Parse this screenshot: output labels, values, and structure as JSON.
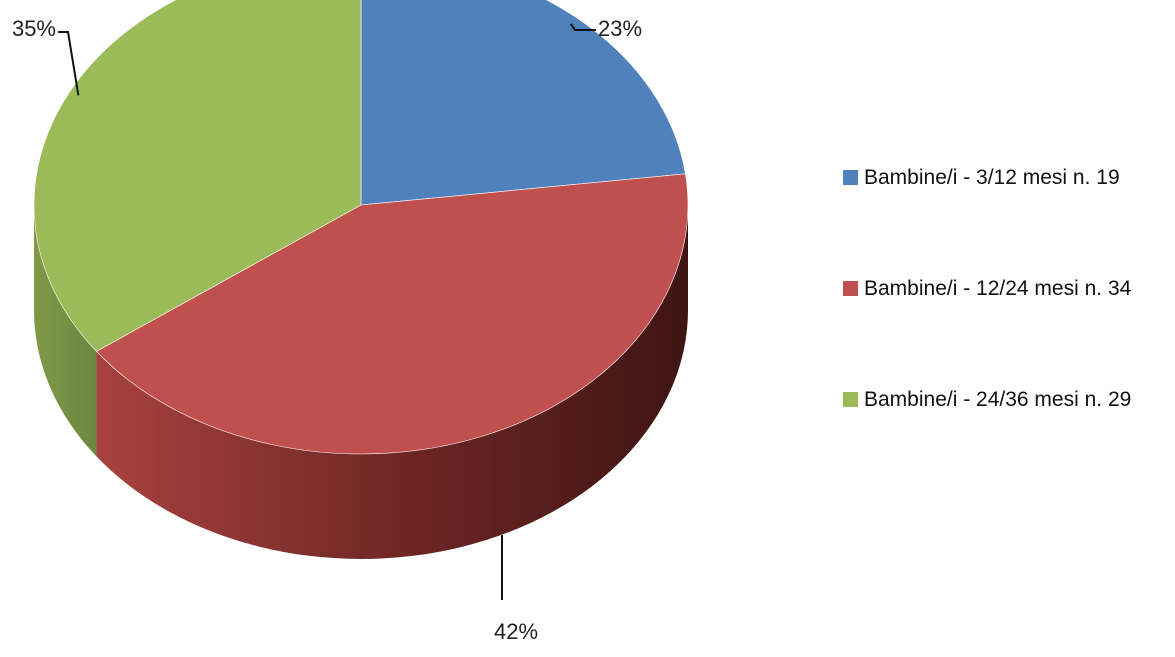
{
  "chart_data": {
    "type": "pie",
    "style": "3d",
    "title": "",
    "categories": [
      "Bambine/i - 3/12 mesi n. 19",
      "Bambine/i - 12/24 mesi n. 34",
      "Bambine/i - 24/36 mesi n. 29"
    ],
    "values": [
      23,
      42,
      35
    ],
    "value_labels": [
      "23%",
      "42%",
      "35%"
    ],
    "colors": [
      "#4F81BD",
      "#C0504D",
      "#9BBB59"
    ],
    "side_colors": [
      "#36598a",
      "#8b2f2c",
      "#6f8a3a"
    ],
    "legend_position": "right"
  }
}
